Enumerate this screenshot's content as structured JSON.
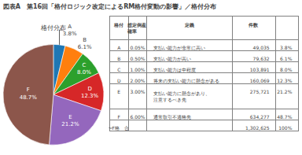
{
  "chart_data": {
    "type": "pie",
    "title": "図表A　第16回「格付ロジック改定によるRM格付変動の影響」／格付分布",
    "subtitle": "格付分布",
    "categories": [
      "A",
      "B",
      "C",
      "D",
      "E",
      "F"
    ],
    "values": [
      3.8,
      6.1,
      8.0,
      12.3,
      21.2,
      48.7
    ],
    "value_labels": [
      "3.8%",
      "6.1%",
      "8.0%",
      "12.3%",
      "21.2%",
      "48.7%"
    ],
    "data_labels": true,
    "table": {
      "columns": [
        "格付",
        "想定倒産\n確率",
        "定義",
        "件数",
        null
      ],
      "rows": [
        [
          "A",
          "0.05%",
          "支払い能力が非常に高い",
          "49,035",
          "3.8%"
        ],
        [
          "B",
          "0.50%",
          "支払い能力が高い",
          "79,632",
          "6.1%"
        ],
        [
          "C",
          "1.00%",
          "支払い能力は中程度",
          "103,891",
          "8.0%"
        ],
        [
          "D",
          "2.00%",
          "将来の支払い能力に懸念がある",
          "160,069",
          "12.3%"
        ],
        [
          "E",
          "3.00%",
          "支払い能力に懸念があり、\n注意するべき先",
          "275,721",
          "21.2%"
        ],
        [
          "F",
          "6.00%",
          "通常取引不適格先",
          "634,277",
          "48.7%"
        ],
        [
          "A〜F格　合計",
          null,
          null,
          "1,302,625",
          "100%"
        ]
      ]
    }
  }
}
